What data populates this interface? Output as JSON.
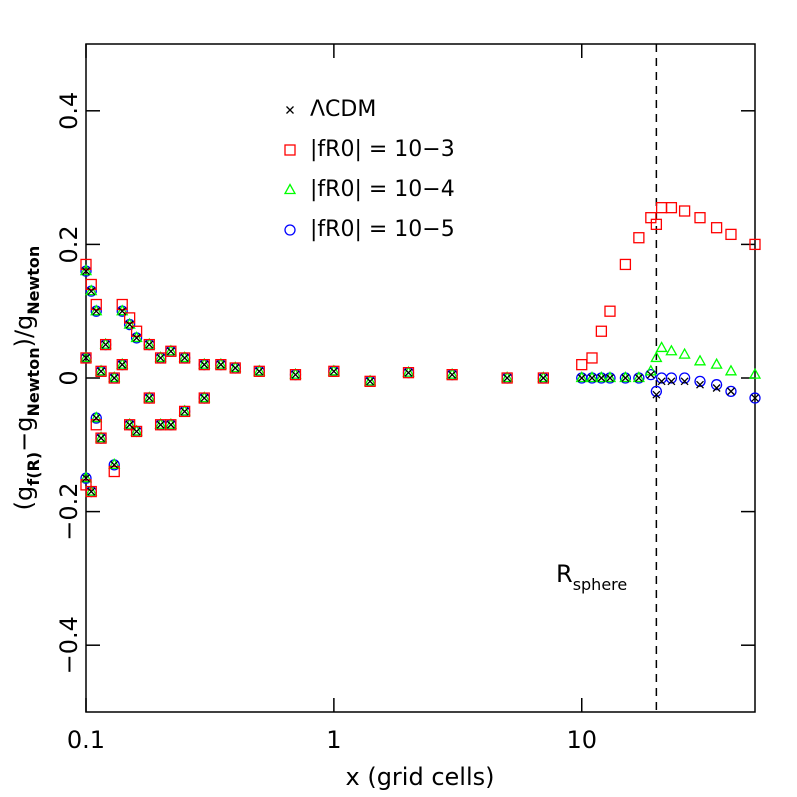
{
  "chart_data": {
    "type": "scatter",
    "xlabel": "x (grid cells)",
    "ylabel_parts": [
      "(g",
      "f(R)",
      "−g",
      "Newton",
      ")/g",
      "Newton"
    ],
    "annotation_parts": [
      "R",
      "sphere"
    ],
    "vline": 20,
    "xscale": "log",
    "xlim": [
      0.1,
      50
    ],
    "xticks": [
      0.1,
      1,
      10
    ],
    "ylim": [
      -0.5,
      0.5
    ],
    "yticks": [
      {
        "value": -0.4,
        "label": "−0.4"
      },
      {
        "value": -0.2,
        "label": "−0.2"
      },
      0,
      0.2,
      0.4
    ],
    "x": [
      0.1,
      0.1,
      0.1,
      0.105,
      0.105,
      0.11,
      0.11,
      0.115,
      0.115,
      0.12,
      0.13,
      0.13,
      0.14,
      0.14,
      0.15,
      0.15,
      0.16,
      0.16,
      0.18,
      0.18,
      0.2,
      0.2,
      0.22,
      0.22,
      0.25,
      0.25,
      0.3,
      0.3,
      0.35,
      0.4,
      0.5,
      0.7,
      1,
      1.4,
      2,
      3,
      5,
      7,
      10,
      11,
      12,
      13,
      15,
      17,
      19,
      20,
      21,
      23,
      26,
      30,
      35,
      40,
      50
    ],
    "series": [
      {
        "name": "ΛCDM",
        "color": "#000000",
        "marker": "x",
        "values": [
          0.16,
          0.03,
          -0.15,
          0.13,
          -0.17,
          0.1,
          -0.06,
          -0.09,
          0.01,
          0.05,
          -0.13,
          0.0,
          0.1,
          0.02,
          0.08,
          -0.07,
          0.06,
          -0.08,
          0.05,
          -0.03,
          0.03,
          -0.07,
          0.04,
          -0.07,
          0.03,
          -0.05,
          0.02,
          -0.03,
          0.02,
          0.015,
          0.01,
          0.005,
          0.01,
          -0.005,
          0.008,
          0.005,
          0,
          0,
          0,
          0,
          0,
          0,
          0,
          0,
          0.005,
          -0.025,
          -0.005,
          -0.005,
          -0.005,
          -0.01,
          -0.015,
          -0.02,
          -0.03
        ]
      },
      {
        "name": "|fR0| = 10−3",
        "color": "#ff0000",
        "marker": "square",
        "values": [
          0.17,
          0.03,
          -0.16,
          0.14,
          -0.17,
          0.11,
          -0.07,
          -0.09,
          0.01,
          0.05,
          -0.14,
          0.0,
          0.11,
          0.02,
          0.09,
          -0.07,
          0.07,
          -0.08,
          0.05,
          -0.03,
          0.03,
          -0.07,
          0.04,
          -0.07,
          0.03,
          -0.05,
          0.02,
          -0.03,
          0.02,
          0.015,
          0.01,
          0.005,
          0.01,
          -0.005,
          0.008,
          0.005,
          0,
          0,
          0.02,
          0.03,
          0.07,
          0.1,
          0.17,
          0.21,
          0.24,
          0.23,
          0.255,
          0.255,
          0.25,
          0.24,
          0.225,
          0.215,
          0.2
        ]
      },
      {
        "name": "|fR0| = 10−4",
        "color": "#00ff00",
        "marker": "triangle",
        "values": [
          0.16,
          0.03,
          -0.15,
          0.13,
          -0.17,
          0.1,
          -0.06,
          -0.09,
          0.01,
          0.05,
          -0.13,
          0.0,
          0.1,
          0.02,
          0.08,
          -0.07,
          0.06,
          -0.08,
          0.05,
          -0.03,
          0.03,
          -0.07,
          0.04,
          -0.07,
          0.03,
          -0.05,
          0.02,
          -0.03,
          0.02,
          0.015,
          0.01,
          0.005,
          0.01,
          -0.005,
          0.008,
          0.005,
          0,
          0,
          0,
          0,
          0,
          0,
          0,
          0,
          0.01,
          0.03,
          0.045,
          0.04,
          0.035,
          0.025,
          0.02,
          0.01,
          0.005
        ]
      },
      {
        "name": "|fR0| = 10−5",
        "color": "#0000ff",
        "marker": "circle",
        "values": [
          0.16,
          0.03,
          -0.15,
          0.13,
          -0.17,
          0.1,
          -0.06,
          -0.09,
          0.01,
          0.05,
          -0.13,
          0.0,
          0.1,
          0.02,
          0.08,
          -0.07,
          0.06,
          -0.08,
          0.05,
          -0.03,
          0.03,
          -0.07,
          0.04,
          -0.07,
          0.03,
          -0.05,
          0.02,
          -0.03,
          0.02,
          0.015,
          0.01,
          0.005,
          0.01,
          -0.005,
          0.008,
          0.005,
          0,
          0,
          0,
          0,
          0,
          0,
          0,
          0,
          0.005,
          -0.02,
          0.0,
          0.0,
          0.0,
          -0.005,
          -0.01,
          -0.02,
          -0.03
        ]
      }
    ]
  }
}
